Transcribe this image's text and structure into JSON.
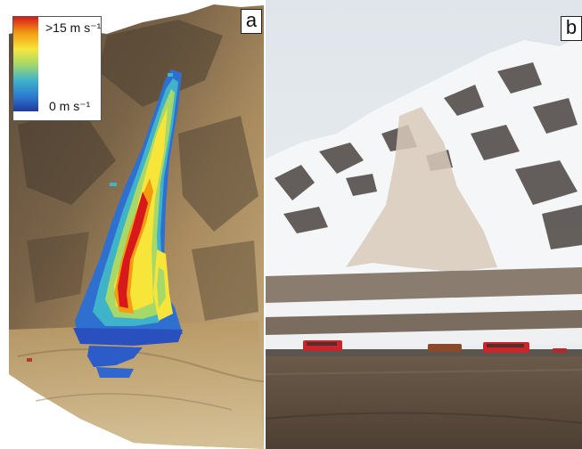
{
  "panels": {
    "a": {
      "label": "a"
    },
    "b": {
      "label": "b"
    }
  },
  "legend": {
    "max_label": ">15 m s⁻¹",
    "min_label": "0 m s⁻¹",
    "colors": [
      "#d7191c",
      "#f39c12",
      "#f7e53a",
      "#a6d96a",
      "#3fb3c9",
      "#2c7bd1",
      "#213a9c"
    ]
  }
}
